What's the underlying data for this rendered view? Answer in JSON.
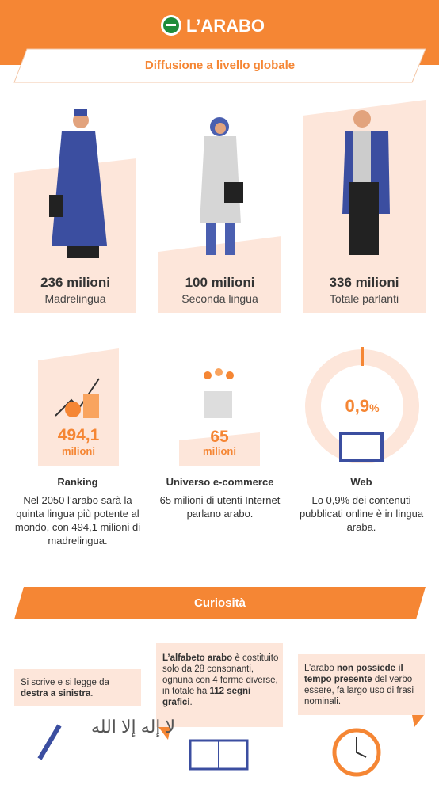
{
  "header": {
    "title": "L’ARABO"
  },
  "diffusion": {
    "title": "Diffusione a livello globale",
    "stats": [
      {
        "value": "236 milioni",
        "label": "Madrelingua"
      },
      {
        "value": "100 milioni",
        "label": "Seconda lingua"
      },
      {
        "value": "336 milioni",
        "label": "Totale parlanti"
      }
    ]
  },
  "facts": [
    {
      "number": "494,1",
      "unit": "milioni",
      "title": "Ranking",
      "text": "Nel 2050 l’arabo sarà la quinta lingua più potente al mondo, con 494,1 milioni di madrelingua."
    },
    {
      "number": "65",
      "unit": "milioni",
      "title": "Universo e-commerce",
      "text": "65 milioni di utenti Internet parlano arabo."
    },
    {
      "number": "0,9",
      "unit": "%",
      "title": "Web",
      "text": "Lo 0,9% dei contenuti pubblicati online è in lingua araba."
    }
  ],
  "curiosities": {
    "title": "Curiosità",
    "items": [
      {
        "segments": [
          {
            "text": "Si scrive e si legge da "
          },
          {
            "text": "destra a sinistra",
            "bold": true
          },
          {
            "text": "."
          }
        ]
      },
      {
        "segments": [
          {
            "text": "L’alfabeto arabo",
            "bold": true
          },
          {
            "text": " è costituito solo da 28 consonanti, ognuna con 4 forme diverse, in totale ha "
          },
          {
            "text": "112 segni grafici",
            "bold": true
          },
          {
            "text": "."
          }
        ]
      },
      {
        "segments": [
          {
            "text": "L’arabo "
          },
          {
            "text": "non possiede il tempo presente",
            "bold": true
          },
          {
            "text": " del verbo essere, fa largo uso di frasi nominali."
          }
        ]
      }
    ]
  }
}
